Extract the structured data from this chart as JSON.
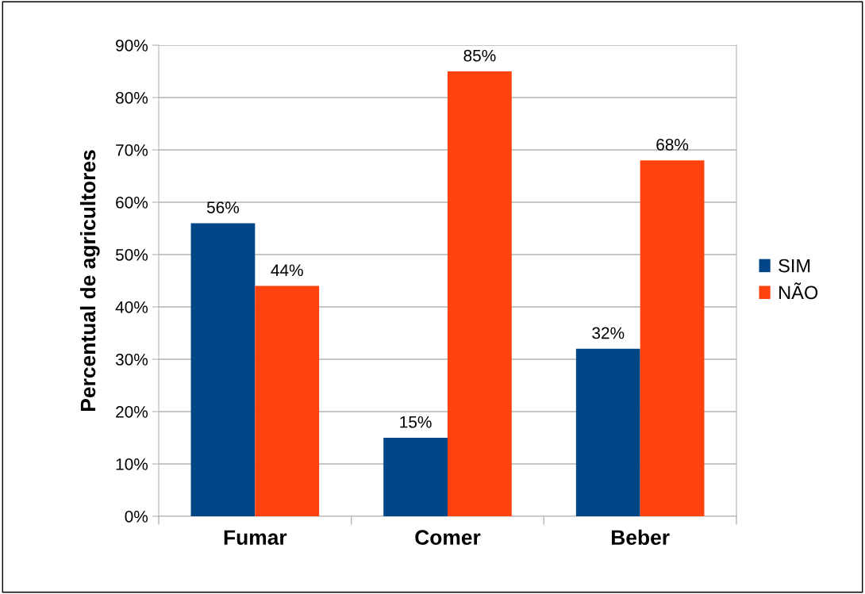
{
  "chart_data": {
    "type": "bar",
    "ylabel": "Percentual de agricultores",
    "categories": [
      "Fumar",
      "Comer",
      "Beber"
    ],
    "series": [
      {
        "name": "SIM",
        "color": "#004586",
        "values": [
          56,
          15,
          32
        ],
        "value_labels": [
          "56%",
          "15%",
          "32%"
        ]
      },
      {
        "name": "NÃO",
        "color": "#ff420e",
        "values": [
          44,
          85,
          68
        ],
        "value_labels": [
          "44%",
          "85%",
          "68%"
        ]
      }
    ],
    "ylim": [
      0,
      90
    ],
    "yticks": [
      {
        "value": 0,
        "label": "0%"
      },
      {
        "value": 10,
        "label": "10%"
      },
      {
        "value": 20,
        "label": "20%"
      },
      {
        "value": 30,
        "label": "30%"
      },
      {
        "value": 40,
        "label": "40%"
      },
      {
        "value": 50,
        "label": "50%"
      },
      {
        "value": 60,
        "label": "60%"
      },
      {
        "value": 70,
        "label": "70%"
      },
      {
        "value": 80,
        "label": "80%"
      },
      {
        "value": 90,
        "label": "90%"
      }
    ],
    "grid": "y",
    "legend": "right"
  }
}
